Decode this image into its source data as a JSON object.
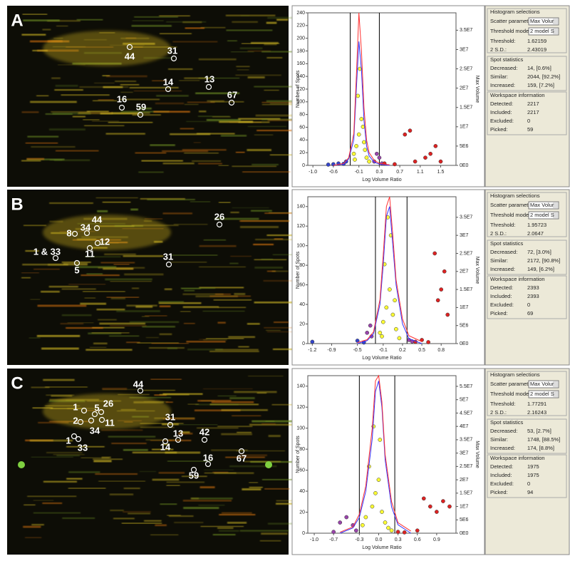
{
  "info_labels": {
    "histogram": "Histogram selections",
    "scatter": "Scatter parameter:",
    "scatter_value": "Max Volur",
    "mode": "Threshold mode:",
    "mode_value": "2 model S",
    "threshold": "Threshold:",
    "sd": "2 S.D.:",
    "stats": "Spot statistics",
    "decreased": "Decreased:",
    "similar": "Similar:",
    "increased": "Increased:",
    "workspace": "Workspace information",
    "detected": "Detected:",
    "included": "Included:",
    "excluded": "Excluded:",
    "picked": "Picked:"
  },
  "panels": [
    {
      "label": "A",
      "spots": [
        "44",
        "31",
        "14",
        "13",
        "67",
        "16",
        "59"
      ],
      "info": {
        "threshold": "1.62159",
        "sd": "2.43019",
        "decreased": "14, [0.6%]",
        "similar": "2044, [92.2%]",
        "increased": "159, [7.2%]",
        "detected": "2217",
        "included": "2217",
        "excluded": "0",
        "picked": "59"
      }
    },
    {
      "label": "B",
      "spots": [
        "26",
        "44",
        "34",
        "8",
        "12",
        "11",
        "1 & 33",
        "5",
        "31"
      ],
      "info": {
        "threshold": "1.95723",
        "sd": "2.0647",
        "decreased": "72, [3.0%]",
        "similar": "2172, [90.8%]",
        "increased": "149, [6.2%]",
        "detected": "2393",
        "included": "2393",
        "excluded": "0",
        "picked": "69"
      }
    },
    {
      "label": "C",
      "spots": [
        "44",
        "1",
        "5",
        "26",
        "2",
        "34",
        "11",
        "1",
        "33",
        "31",
        "13",
        "14",
        "42",
        "67",
        "16",
        "59"
      ],
      "info": {
        "threshold": "1.77291",
        "sd": "2.16243",
        "decreased": "53, [2.7%]",
        "similar": "1748, [88.5%]",
        "increased": "174, [8.8%]",
        "detected": "1975",
        "included": "1975",
        "excluded": "0",
        "picked": "94"
      }
    }
  ],
  "chart_data": [
    {
      "type": "scatter",
      "x_label": "Log Volume Ratio",
      "y_label": "Number of Spots",
      "y2_label": "Max Volume",
      "xlim": [
        -1.1,
        1.8
      ],
      "xticks": [
        {
          "value": -1,
          "label": "-1.0"
        },
        -0.6,
        -0.1,
        0.3,
        0.7,
        1.1,
        1.5
      ],
      "ylim": [
        0,
        240
      ],
      "yticks": [
        0,
        20,
        40,
        60,
        80,
        100,
        120,
        140,
        160,
        180,
        200,
        220,
        240
      ],
      "y2lim": [
        0,
        39500000
      ],
      "y2ticks": [
        {
          "value": 0,
          "label": "0E0"
        },
        {
          "value": 5000000,
          "label": "5E6"
        },
        {
          "value": 10000000,
          "label": "1E7"
        },
        {
          "value": 15000000,
          "label": "1.5E7"
        },
        {
          "value": 20000000,
          "label": "2E7"
        },
        {
          "value": 25000000,
          "label": "2.5E7"
        },
        {
          "value": 30000000,
          "label": "3E7"
        },
        {
          "value": 35000000,
          "label": "3.5E7"
        }
      ],
      "thresholds": [
        -0.27,
        0.3
      ],
      "series": [
        {
          "mode": "line",
          "color": "#3333ff",
          "x": [
            -0.6,
            -0.4,
            -0.3,
            -0.2,
            -0.15,
            -0.1,
            -0.05,
            0,
            0.05,
            0.1,
            0.2,
            0.3,
            0.5
          ],
          "values": [
            0,
            2,
            10,
            40,
            120,
            195,
            150,
            70,
            30,
            15,
            5,
            2,
            0
          ]
        },
        {
          "mode": "line",
          "color": "#ff3030",
          "x": [
            -0.6,
            -0.4,
            -0.3,
            -0.2,
            -0.15,
            -0.1,
            -0.05,
            0,
            0.05,
            0.1,
            0.2,
            0.3,
            0.5
          ],
          "values": [
            0,
            3,
            12,
            50,
            140,
            240,
            180,
            90,
            40,
            20,
            8,
            3,
            1
          ]
        },
        {
          "mode": "points",
          "axis": "y2",
          "color": "#ffff33",
          "x": [
            -0.2,
            -0.15,
            -0.1,
            -0.05,
            0,
            0.05,
            -0.12,
            -0.08,
            -0.02,
            0.1,
            -0.18,
            0.02
          ],
          "values": [
            3000000,
            5000000,
            8000000,
            12000000,
            6000000,
            2000000,
            18000000,
            25000000,
            10000000,
            1000000,
            1500000,
            4000000
          ]
        },
        {
          "mode": "points",
          "axis": "y2",
          "color": "#3344cc",
          "x": [
            -0.7,
            -0.6,
            -0.5,
            -0.4,
            -0.35
          ],
          "values": [
            200000,
            300000,
            500000,
            400000,
            1000000
          ]
        },
        {
          "mode": "points",
          "axis": "y2",
          "color": "#9944aa",
          "x": [
            0.2,
            0.25,
            0.3,
            0.35
          ],
          "values": [
            1000000,
            3000000,
            2000000,
            500000
          ]
        },
        {
          "mode": "points",
          "axis": "y2",
          "color": "#dd2222",
          "x": [
            0.4,
            0.6,
            0.8,
            0.9,
            1.0,
            1.2,
            1.3,
            1.4,
            1.5
          ],
          "values": [
            500000,
            300000,
            8000000,
            9000000,
            1000000,
            2000000,
            3000000,
            5000000,
            1000000
          ]
        }
      ]
    },
    {
      "type": "scatter",
      "x_label": "Log Volume Ratio",
      "y_label": "Number of Spots",
      "y2_label": "Max Volume",
      "xlim": [
        -1.27,
        1.03
      ],
      "xticks": [
        -1.2,
        -0.9,
        -0.5,
        -0.1,
        0.2,
        0.5,
        0.8
      ],
      "ylim": [
        0,
        150
      ],
      "yticks": [
        0,
        20,
        40,
        60,
        80,
        100,
        120,
        140
      ],
      "y2lim": [
        0,
        40700000
      ],
      "y2ticks": [
        {
          "value": 0,
          "label": "0E0"
        },
        {
          "value": 5000000,
          "label": "5E6"
        },
        {
          "value": 10000000,
          "label": "1E7"
        },
        {
          "value": 15000000,
          "label": "1.5E7"
        },
        {
          "value": 20000000,
          "label": "2E7"
        },
        {
          "value": 25000000,
          "label": "2.5E7"
        },
        {
          "value": 30000000,
          "label": "3E7"
        },
        {
          "value": 35000000,
          "label": "3.5E7"
        }
      ],
      "thresholds": [
        -0.22,
        0.27
      ],
      "series": [
        {
          "mode": "line",
          "color": "#3333ff",
          "x": [
            -0.5,
            -0.35,
            -0.25,
            -0.15,
            -0.1,
            -0.05,
            0,
            0.05,
            0.1,
            0.2,
            0.3,
            0.5
          ],
          "values": [
            0,
            3,
            10,
            40,
            80,
            130,
            140,
            100,
            60,
            20,
            5,
            0
          ]
        },
        {
          "mode": "line",
          "color": "#ff3030",
          "x": [
            -0.5,
            -0.35,
            -0.25,
            -0.15,
            -0.1,
            -0.05,
            0,
            0.05,
            0.1,
            0.2,
            0.3,
            0.5
          ],
          "values": [
            1,
            4,
            12,
            45,
            90,
            140,
            150,
            110,
            65,
            25,
            8,
            2
          ]
        },
        {
          "mode": "points",
          "axis": "y2",
          "color": "#ffff33",
          "x": [
            -0.15,
            -0.1,
            -0.05,
            0,
            0.05,
            0.1,
            -0.08,
            0.02,
            -0.12,
            0.15,
            -0.03,
            0.08
          ],
          "values": [
            3000000,
            6000000,
            10000000,
            15000000,
            8000000,
            4000000,
            22000000,
            30000000,
            2000000,
            1500000,
            35000000,
            12000000
          ]
        },
        {
          "mode": "points",
          "axis": "y2",
          "color": "#3344cc",
          "x": [
            -1.2,
            -0.5,
            -0.4
          ],
          "values": [
            500000,
            800000,
            300000
          ]
        },
        {
          "mode": "points",
          "axis": "y2",
          "color": "#9944aa",
          "x": [
            -0.35,
            -0.3,
            -0.28,
            0.3,
            0.35
          ],
          "values": [
            3000000,
            5000000,
            2000000,
            1000000,
            600000
          ]
        },
        {
          "mode": "points",
          "axis": "y2",
          "color": "#dd2222",
          "x": [
            0.4,
            0.5,
            0.6,
            0.7,
            0.75,
            0.8,
            0.85,
            0.9
          ],
          "values": [
            500000,
            1000000,
            400000,
            25000000,
            12000000,
            15000000,
            20000000,
            8000000
          ]
        }
      ]
    },
    {
      "type": "scatter",
      "x_label": "Log Volume Ratio",
      "y_label": "Number of Spots",
      "y2_label": "Max Volume",
      "xlim": [
        -1.1,
        1.2
      ],
      "xticks": [
        {
          "value": -1,
          "label": "-1.0"
        },
        -0.7,
        -0.3,
        {
          "value": 0,
          "label": "0.0"
        },
        0.3,
        0.6,
        0.9
      ],
      "ylim": [
        0,
        150
      ],
      "yticks": [
        0,
        20,
        40,
        60,
        80,
        100,
        120,
        140
      ],
      "y2lim": [
        0,
        59000000
      ],
      "y2ticks": [
        {
          "value": 0,
          "label": "0E0"
        },
        {
          "value": 5000000,
          "label": "5E6"
        },
        {
          "value": 10000000,
          "label": "1E7"
        },
        {
          "value": 15000000,
          "label": "1.5E7"
        },
        {
          "value": 20000000,
          "label": "2E7"
        },
        {
          "value": 25000000,
          "label": "2.5E7"
        },
        {
          "value": 30000000,
          "label": "3E7"
        },
        {
          "value": 35000000,
          "label": "3.5E7"
        },
        {
          "value": 40000000,
          "label": "4E7"
        },
        {
          "value": 45000000,
          "label": "4.5E7"
        },
        {
          "value": 50000000,
          "label": "5E7"
        },
        {
          "value": 55000000,
          "label": "5.5E7"
        }
      ],
      "thresholds": [
        -0.3,
        0.25
      ],
      "series": [
        {
          "mode": "line",
          "color": "#3333ff",
          "x": [
            -0.6,
            -0.4,
            -0.3,
            -0.2,
            -0.1,
            -0.05,
            0,
            0.05,
            0.1,
            0.2,
            0.3,
            0.5
          ],
          "values": [
            0,
            5,
            15,
            40,
            90,
            135,
            145,
            120,
            70,
            25,
            8,
            0
          ]
        },
        {
          "mode": "line",
          "color": "#ff3030",
          "x": [
            -0.6,
            -0.4,
            -0.3,
            -0.2,
            -0.1,
            -0.05,
            0,
            0.05,
            0.1,
            0.2,
            0.3,
            0.5
          ],
          "values": [
            1,
            6,
            18,
            45,
            100,
            145,
            150,
            125,
            75,
            30,
            10,
            2
          ]
        },
        {
          "mode": "points",
          "axis": "y2",
          "color": "#ffff33",
          "x": [
            -0.25,
            -0.2,
            -0.1,
            -0.05,
            0,
            0.05,
            0.1,
            -0.15,
            0.02,
            -0.08,
            0.15,
            0.2
          ],
          "values": [
            3000000,
            6000000,
            10000000,
            15000000,
            20000000,
            8000000,
            4000000,
            25000000,
            35000000,
            40000000,
            2000000,
            1000000
          ]
        },
        {
          "mode": "points",
          "axis": "y2",
          "color": "#9944aa",
          "x": [
            -0.7,
            -0.6,
            -0.5,
            -0.4,
            -0.35
          ],
          "values": [
            500000,
            4000000,
            6000000,
            3000000,
            1000000
          ]
        },
        {
          "mode": "points",
          "axis": "y2",
          "color": "#dd2222",
          "x": [
            0.3,
            0.4,
            0.6,
            0.7,
            0.8,
            0.9,
            1.0,
            1.1
          ],
          "values": [
            500000,
            300000,
            1000000,
            13000000,
            10000000,
            8000000,
            12000000,
            10000000
          ]
        }
      ]
    }
  ]
}
